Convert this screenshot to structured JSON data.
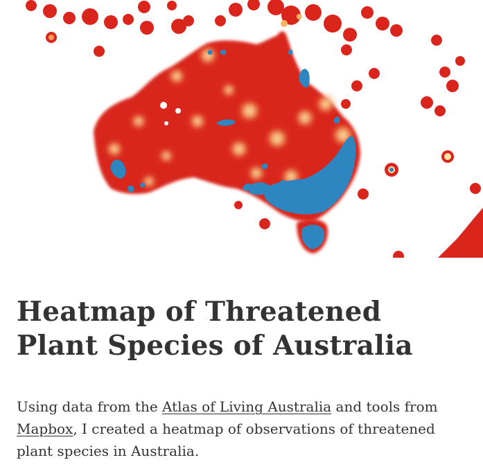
{
  "article": {
    "title": "Heatmap of Threatened Plant Species of Australia",
    "intro": {
      "text_before_link1": "Using data from the ",
      "link1_label": "Atlas of Living Australia",
      "text_between_links": " and tools from ",
      "link2_label": "Mapbox",
      "text_after_link2": ", I created a heatmap of observations of threatened plant species in Aus­tralia."
    }
  },
  "hero_image": {
    "colors": {
      "low_density": "#d9261c",
      "mid_density": "#f4a05a",
      "high_density": "#fbe7a3",
      "peak_density": "#2e86c1"
    }
  }
}
